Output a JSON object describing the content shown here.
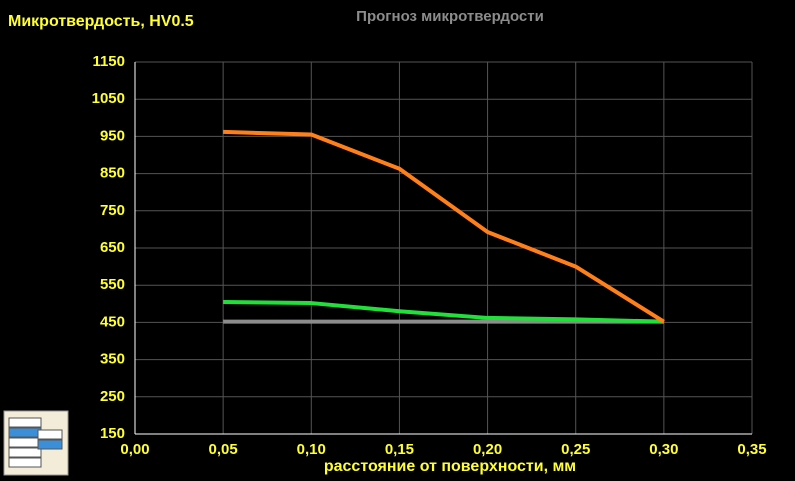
{
  "chart_data": {
    "type": "line",
    "title": "Прогноз микротвердости",
    "y_label": "Микротвердость, HV0.5",
    "x_label": "расстояние от поверхности, мм",
    "x": [
      0.05,
      0.1,
      0.15,
      0.2,
      0.25,
      0.3
    ],
    "series": [
      {
        "color": "#ff7f1a",
        "values": [
          962,
          955,
          863,
          693,
          600,
          452
        ]
      },
      {
        "color": "#22e03a",
        "values": [
          505,
          502,
          480,
          462,
          458,
          452
        ]
      },
      {
        "color": "#8c8c8c",
        "values": [
          452,
          452,
          452,
          452,
          452,
          452
        ]
      }
    ],
    "xlim": [
      0,
      0.35
    ],
    "xticks": [
      {
        "value": 0,
        "label": "0,00"
      },
      {
        "value": 0.05,
        "label": "0,05"
      },
      {
        "value": 0.1,
        "label": "0,10"
      },
      {
        "value": 0.15,
        "label": "0,15"
      },
      {
        "value": 0.2,
        "label": "0,20"
      },
      {
        "value": 0.25,
        "label": "0,25"
      },
      {
        "value": 0.3,
        "label": "0,30"
      },
      {
        "value": 0.35,
        "label": "0,35"
      }
    ],
    "ylim": [
      150,
      1150
    ],
    "yticks": [
      150,
      250,
      350,
      450,
      550,
      650,
      750,
      850,
      950,
      1050,
      1150
    ],
    "grid": true
  }
}
